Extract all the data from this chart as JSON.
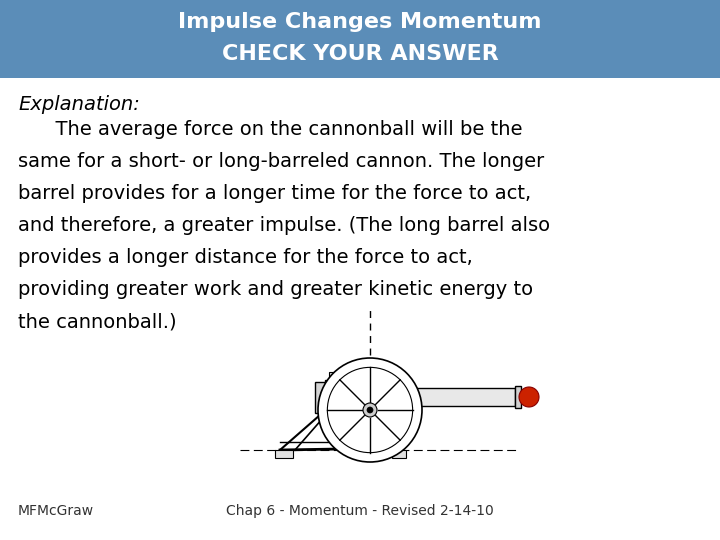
{
  "title_line1": "Impulse Changes Momentum",
  "title_line2": "CHECK YOUR ANSWER",
  "title_bg_color": "#5b8db8",
  "title_text_color": "#ffffff",
  "body_bg_color": "#ffffff",
  "explanation_label": "Explanation:",
  "body_text": "      The average force on the cannonball will be the\nsame for a short- or long-barreled cannon. The longer\nbarrel provides for a longer time for the force to act,\nand therefore, a greater impulse. (The long barrel also\nprovides a longer distance for the force to act,\nproviding greater work and greater kinetic energy to\nthe cannonball.)",
  "footer_left": "MFMcGraw",
  "footer_right": "Chap 6 - Momentum - Revised 2-14-10",
  "title_fontsize": 16,
  "body_fontsize": 14,
  "footer_fontsize": 10,
  "explanation_fontsize": 14
}
